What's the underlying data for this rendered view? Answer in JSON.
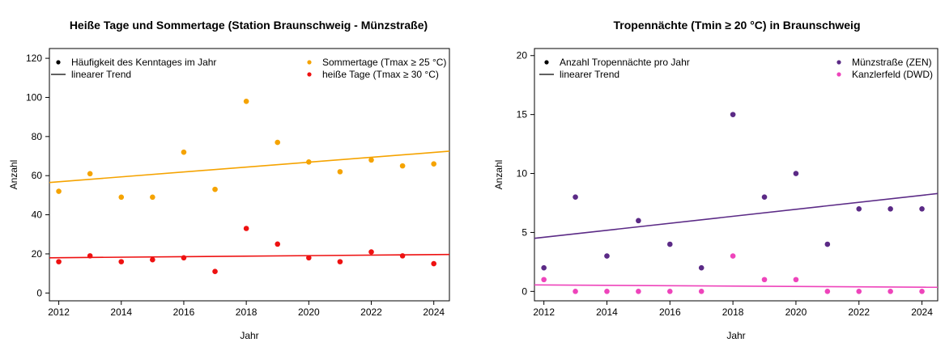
{
  "chart_data": [
    {
      "type": "scatter",
      "title": "Heiße Tage und Sommertage (Station Braunschweig - Münzstraße)",
      "xlabel": "Jahr",
      "ylabel": "Anzahl",
      "xlim": [
        2011.7,
        2024.5
      ],
      "ylim": [
        -4,
        125
      ],
      "x_ticks": [
        2012,
        2014,
        2016,
        2018,
        2020,
        2022,
        2024
      ],
      "y_ticks": [
        0,
        20,
        40,
        60,
        80,
        100,
        120
      ],
      "grid": false,
      "legend_left": [
        {
          "label": "Häufigkeit des Kenntages im Jahr",
          "symbol": "point",
          "color": "#000000"
        },
        {
          "label": "linearer Trend",
          "symbol": "line",
          "color": "#000000"
        }
      ],
      "legend_right": [
        {
          "label": "Sommertage (Tmax ≥ 25 °C)",
          "symbol": "point",
          "color": "#F5A300"
        },
        {
          "label": "heiße Tage (Tmax ≥ 30 °C)",
          "symbol": "point",
          "color": "#EE1111"
        }
      ],
      "x": [
        2012,
        2013,
        2014,
        2015,
        2016,
        2017,
        2018,
        2019,
        2020,
        2021,
        2022,
        2023,
        2024
      ],
      "series": [
        {
          "name": "Sommertage (Tmax ≥ 25 °C)",
          "color": "#F5A300",
          "values": [
            52,
            61,
            49,
            49,
            72,
            53,
            98,
            77,
            67,
            62,
            68,
            65,
            66
          ],
          "trend": [
            56.5,
            72.5
          ]
        },
        {
          "name": "heiße Tage (Tmax ≥ 30 °C)",
          "color": "#EE1111",
          "values": [
            16,
            19,
            16,
            17,
            18,
            11,
            33,
            25,
            18,
            16,
            21,
            19,
            15
          ],
          "trend": [
            18.0,
            19.7
          ]
        }
      ]
    },
    {
      "type": "scatter",
      "title": "Tropennächte (Tmin ≥ 20 °C) in Braunschweig",
      "xlabel": "Jahr",
      "ylabel": "Anzahl",
      "xlim": [
        2011.7,
        2024.5
      ],
      "ylim": [
        -0.8,
        20.6
      ],
      "x_ticks": [
        2012,
        2014,
        2016,
        2018,
        2020,
        2022,
        2024
      ],
      "y_ticks": [
        0,
        5,
        10,
        15,
        20
      ],
      "grid": false,
      "legend_left": [
        {
          "label": "Anzahl Tropennächte pro Jahr",
          "symbol": "point",
          "color": "#000000"
        },
        {
          "label": "linearer Trend",
          "symbol": "line",
          "color": "#000000"
        }
      ],
      "legend_right": [
        {
          "label": "Münzstraße (ZEN)",
          "symbol": "point",
          "color": "#5B2A86"
        },
        {
          "label": "Kanzlerfeld (DWD)",
          "symbol": "point",
          "color": "#EE44BB"
        }
      ],
      "x": [
        2012,
        2013,
        2014,
        2015,
        2016,
        2017,
        2018,
        2019,
        2020,
        2021,
        2022,
        2023,
        2024
      ],
      "series": [
        {
          "name": "Münzstraße (ZEN)",
          "color": "#5B2A86",
          "values": [
            2,
            8,
            3,
            6,
            4,
            2,
            15,
            8,
            10,
            4,
            7,
            7,
            7
          ],
          "trend": [
            4.5,
            8.3
          ]
        },
        {
          "name": "Kanzlerfeld (DWD)",
          "color": "#EE44BB",
          "values": [
            1,
            0,
            0,
            0,
            0,
            0,
            3,
            1,
            1,
            0,
            0,
            0,
            0
          ],
          "trend": [
            0.55,
            0.35
          ]
        }
      ]
    }
  ]
}
